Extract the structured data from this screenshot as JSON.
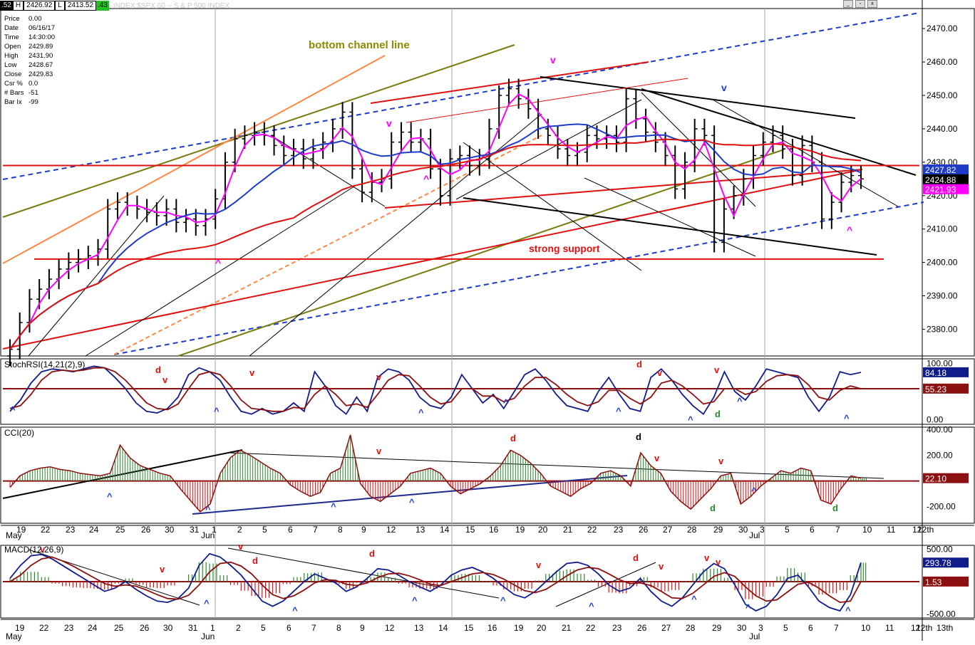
{
  "window": {
    "title": "INDEX:$SPX,60 -- S & P 500 INDEX",
    "header_prefix": ".52",
    "header_flag": "H",
    "header_val1": "2426.92",
    "header_flag2": "L",
    "header_val2": "2413.52",
    "header_change": ".43"
  },
  "info": [
    {
      "k": "Price",
      "v": "0.00"
    },
    {
      "k": "Date",
      "v": "06/16/17"
    },
    {
      "k": "Time",
      "v": "14:30:00"
    },
    {
      "k": "Open",
      "v": "2429.89"
    },
    {
      "k": "High",
      "v": "2431.90"
    },
    {
      "k": "Low",
      "v": "2428.67"
    },
    {
      "k": "Close",
      "v": "2429.83"
    },
    {
      "k": "Csr %",
      "v": "0.0"
    },
    {
      "k": "# Bars",
      "v": "-51"
    },
    {
      "k": "Bar Ix",
      "v": "-99"
    }
  ],
  "colors": {
    "price_bar": "#000000",
    "ma_short": "#ff00ff",
    "ma_mid": "#1e3cc8",
    "ma_long": "#e01010",
    "support": "#e01010",
    "blue_dash": "#1e3cc8",
    "olive": "#7a7a10",
    "orange": "#ff8844",
    "stoch": "#101c8c",
    "stoch_signal": "#8c1010",
    "pos_hist": "#2a8a2a",
    "neg_hist": "#e01010"
  },
  "chart_data": [
    {
      "type": "bar",
      "panel": "price",
      "symbol": "INDEX:$SPX,60",
      "ylim": [
        2372,
        2476
      ],
      "yticks": [
        "2470.00",
        "2460.00",
        "2450.00",
        "2440.00",
        "2430.00",
        "2420.00",
        "2410.00",
        "2400.00",
        "2390.00",
        "2380.00"
      ],
      "ytick_values": [
        2470,
        2460,
        2450,
        2440,
        2430,
        2420,
        2410,
        2400,
        2390,
        2380
      ],
      "price_badges": [
        {
          "label": "2427.82",
          "value": 2427.82,
          "color": "#1e3cc8"
        },
        {
          "label": "2424.88",
          "value": 2424.88,
          "color": "#000000"
        },
        {
          "label": "2421.93",
          "value": 2421.93,
          "color": "#ff00ff"
        }
      ],
      "annotations": [
        {
          "text": "bottom channel line",
          "color": "#8a8a00"
        },
        {
          "text": "strong support",
          "color": "#e01010"
        }
      ],
      "support_levels": [
        2401,
        2429
      ],
      "closes": [
        2374,
        2382,
        2389,
        2392,
        2395,
        2398,
        2400,
        2401,
        2402,
        2404,
        2416,
        2418,
        2417,
        2416,
        2415,
        2414,
        2416,
        2412,
        2413,
        2411,
        2413,
        2419,
        2430,
        2437,
        2438,
        2439,
        2438,
        2435,
        2432,
        2434,
        2431,
        2434,
        2436,
        2440,
        2445,
        2428,
        2421,
        2424,
        2425,
        2436,
        2439,
        2436,
        2437,
        2428,
        2420,
        2431,
        2432,
        2429,
        2431,
        2440,
        2450,
        2452,
        2449,
        2446,
        2440,
        2438,
        2434,
        2432,
        2433,
        2438,
        2437,
        2438,
        2436,
        2449,
        2443,
        2439,
        2436,
        2432,
        2422,
        2430,
        2440,
        2438,
        2406,
        2416,
        2420,
        2425,
        2432,
        2436,
        2438,
        2434,
        2426,
        2435,
        2430,
        2413,
        2418,
        2424,
        2426,
        2425
      ]
    },
    {
      "type": "line",
      "panel": "stochrsi",
      "label": "StochRSI(14,21(2),9)",
      "ylim": [
        0,
        100
      ],
      "yticks": [
        "100.00",
        "0.00"
      ],
      "ytick_values": [
        100,
        0
      ],
      "badges": [
        {
          "label": "84.18",
          "value": 84.18,
          "color": "#101c8c"
        },
        {
          "label": "55.23",
          "value": 55.23,
          "color": "#8c1010"
        }
      ],
      "k": [
        15,
        35,
        65,
        85,
        90,
        88,
        85,
        90,
        95,
        92,
        75,
        55,
        30,
        15,
        12,
        20,
        40,
        80,
        92,
        85,
        70,
        40,
        15,
        10,
        20,
        10,
        15,
        30,
        15,
        85,
        60,
        25,
        10,
        40,
        15,
        75,
        90,
        85,
        70,
        40,
        25,
        20,
        40,
        80,
        55,
        30,
        45,
        20,
        50,
        80,
        90,
        70,
        45,
        25,
        20,
        15,
        50,
        75,
        45,
        20,
        15,
        75,
        90,
        70,
        45,
        25,
        10,
        40,
        85,
        50,
        35,
        60,
        90,
        85,
        80,
        75,
        40,
        15,
        40,
        85,
        80,
        84
      ],
      "d": [
        20,
        25,
        45,
        70,
        85,
        88,
        86,
        88,
        92,
        92,
        85,
        70,
        50,
        30,
        20,
        18,
        28,
        55,
        80,
        85,
        80,
        60,
        35,
        20,
        18,
        15,
        15,
        22,
        20,
        45,
        60,
        45,
        25,
        28,
        22,
        45,
        70,
        80,
        78,
        60,
        40,
        28,
        32,
        55,
        55,
        42,
        42,
        32,
        38,
        60,
        75,
        75,
        62,
        45,
        32,
        25,
        32,
        52,
        52,
        38,
        28,
        40,
        65,
        70,
        60,
        45,
        28,
        32,
        55,
        55,
        45,
        50,
        68,
        78,
        80,
        78,
        62,
        40,
        35,
        52,
        60,
        55
      ]
    },
    {
      "type": "bar",
      "panel": "cci",
      "label": "CCI(20)",
      "ylim": [
        -330,
        420
      ],
      "yticks": [
        "400.00",
        "200.00",
        "-200.00"
      ],
      "ytick_values": [
        400,
        200,
        -200
      ],
      "badges": [
        {
          "label": "22.10",
          "value": 22.1,
          "color": "#8c1010"
        }
      ],
      "values": [
        -50,
        40,
        80,
        100,
        110,
        90,
        80,
        60,
        50,
        40,
        60,
        280,
        180,
        120,
        90,
        60,
        40,
        -60,
        -150,
        -240,
        -180,
        60,
        180,
        240,
        200,
        150,
        100,
        60,
        -30,
        -80,
        -120,
        -90,
        60,
        100,
        360,
        -20,
        -120,
        -160,
        -100,
        -40,
        60,
        80,
        100,
        60,
        -40,
        -100,
        -60,
        -20,
        40,
        120,
        240,
        200,
        140,
        60,
        -40,
        -80,
        -120,
        -60,
        -20,
        60,
        80,
        40,
        -40,
        220,
        120,
        60,
        -80,
        -160,
        -220,
        -140,
        -60,
        40,
        60,
        -180,
        -120,
        -40,
        20,
        80,
        60,
        100,
        80,
        -150,
        -180,
        -60,
        40,
        22
      ]
    },
    {
      "type": "line",
      "panel": "macd",
      "label": "MACD(12,26,9)",
      "ylim": [
        -560,
        560
      ],
      "yticks": [
        "500.00",
        "-500.00"
      ],
      "ytick_values": [
        500,
        -500
      ],
      "badges": [
        {
          "label": "293.78",
          "value": 293.78,
          "color": "#101c8c"
        },
        {
          "label": "1.53",
          "value": 1.53,
          "color": "#8c1010"
        }
      ],
      "macd": [
        50,
        250,
        400,
        420,
        350,
        250,
        150,
        50,
        -50,
        -150,
        -100,
        0,
        -120,
        -220,
        -300,
        -320,
        -260,
        -100,
        250,
        430,
        380,
        250,
        100,
        -100,
        -300,
        -380,
        -300,
        -150,
        0,
        120,
        50,
        -20,
        -150,
        -80,
        50,
        200,
        180,
        100,
        0,
        -80,
        -150,
        -50,
        100,
        180,
        220,
        150,
        50,
        -80,
        -200,
        -250,
        -150,
        0,
        150,
        280,
        300,
        250,
        120,
        -50,
        -150,
        -100,
        50,
        -150,
        -300,
        -380,
        -250,
        -50,
        150,
        280,
        200,
        -50,
        -350,
        -450,
        -380,
        -200,
        50,
        100,
        -80,
        -300,
        -400,
        -450,
        -200,
        294
      ],
      "signal": [
        0,
        100,
        250,
        350,
        380,
        320,
        240,
        150,
        60,
        -30,
        -70,
        -50,
        -70,
        -130,
        -200,
        -260,
        -270,
        -210,
        -50,
        150,
        280,
        300,
        240,
        120,
        -50,
        -200,
        -260,
        -220,
        -130,
        -20,
        30,
        20,
        -40,
        -60,
        -20,
        60,
        120,
        130,
        90,
        30,
        -40,
        -60,
        0,
        60,
        120,
        140,
        110,
        40,
        -50,
        -140,
        -170,
        -120,
        -20,
        90,
        180,
        220,
        200,
        120,
        30,
        -30,
        -20,
        -60,
        -150,
        -250,
        -260,
        -180,
        -50,
        80,
        140,
        80,
        -80,
        -220,
        -300,
        -280,
        -160,
        -40,
        -10,
        -100,
        -220,
        -320,
        -300,
        2
      ],
      "hist_scale": 0.5
    },
    {
      "type": "table",
      "panel": "x-axis",
      "date_labels": [
        {
          "label": "19",
          "month": "May"
        },
        {
          "label": "22"
        },
        {
          "label": "23"
        },
        {
          "label": "24"
        },
        {
          "label": "25"
        },
        {
          "label": "26"
        },
        {
          "label": "30"
        },
        {
          "label": "31"
        },
        {
          "label": "1",
          "month": "Jun"
        },
        {
          "label": "2"
        },
        {
          "label": "5"
        },
        {
          "label": "6"
        },
        {
          "label": "7"
        },
        {
          "label": "8"
        },
        {
          "label": "9"
        },
        {
          "label": "12"
        },
        {
          "label": "13"
        },
        {
          "label": "14"
        },
        {
          "label": "15"
        },
        {
          "label": "16"
        },
        {
          "label": "19"
        },
        {
          "label": "20"
        },
        {
          "label": "21"
        },
        {
          "label": "22"
        },
        {
          "label": "23"
        },
        {
          "label": "26"
        },
        {
          "label": "27"
        },
        {
          "label": "28"
        },
        {
          "label": "29"
        },
        {
          "label": "30"
        },
        {
          "label": "3",
          "month": "Jul"
        },
        {
          "label": "5"
        },
        {
          "label": "6"
        },
        {
          "label": "7"
        },
        {
          "label": "10"
        },
        {
          "label": "11"
        },
        {
          "label": "12"
        },
        {
          "label": "12th"
        }
      ],
      "date_labels_bottom_extra": "13th"
    }
  ],
  "markers": {
    "price": [
      {
        "t": "v",
        "c": "#ff00ff"
      },
      {
        "t": "^",
        "c": "#ff00ff"
      },
      {
        "t": "v",
        "c": "#ff00ff"
      },
      {
        "t": "^",
        "c": "#ff00ff"
      },
      {
        "t": "v",
        "c": "#1e3cc8"
      },
      {
        "t": "^",
        "c": "#ff00ff"
      }
    ],
    "stoch": [
      {
        "t": "^",
        "c": "#1e3cc8"
      },
      {
        "t": "d",
        "c": "#e01010"
      },
      {
        "t": "v",
        "c": "#e01010"
      },
      {
        "t": "^",
        "c": "#1e3cc8"
      },
      {
        "t": "v",
        "c": "#e01010"
      },
      {
        "t": "v",
        "c": "#e01010"
      },
      {
        "t": "^",
        "c": "#1e3cc8"
      },
      {
        "t": "^",
        "c": "#1e3cc8"
      },
      {
        "t": "d",
        "c": "#e01010"
      },
      {
        "t": "v",
        "c": "#e01010"
      },
      {
        "t": "^",
        "c": "#1e3cc8"
      },
      {
        "t": "v",
        "c": "#e01010"
      },
      {
        "t": "^",
        "c": "#1e3cc8"
      },
      {
        "t": "d",
        "c": "#2a8a2a"
      },
      {
        "t": "^",
        "c": "#1e3cc8"
      },
      {
        "t": "^",
        "c": "#1e3cc8"
      }
    ],
    "cci": [
      {
        "t": "^",
        "c": "#1e3cc8"
      },
      {
        "t": "^",
        "c": "#1e3cc8"
      },
      {
        "t": "v",
        "c": "#e01010"
      },
      {
        "t": "^",
        "c": "#1e3cc8"
      },
      {
        "t": "^",
        "c": "#1e3cc8"
      },
      {
        "t": "d",
        "c": "#e01010"
      },
      {
        "t": "d",
        "c": "#000000"
      },
      {
        "t": "v",
        "c": "#e01010"
      },
      {
        "t": "v",
        "c": "#e01010"
      },
      {
        "t": "d",
        "c": "#2a8a2a"
      },
      {
        "t": "^",
        "c": "#1e3cc8"
      },
      {
        "t": "d",
        "c": "#2a8a2a"
      }
    ],
    "macd": [
      {
        "t": "v",
        "c": "#e01010"
      },
      {
        "t": "v",
        "c": "#e01010"
      },
      {
        "t": "^",
        "c": "#1e3cc8"
      },
      {
        "t": "v",
        "c": "#e01010"
      },
      {
        "t": "d",
        "c": "#e01010"
      },
      {
        "t": "^",
        "c": "#1e3cc8"
      },
      {
        "t": "d",
        "c": "#e01010"
      },
      {
        "t": "^",
        "c": "#1e3cc8"
      },
      {
        "t": "^",
        "c": "#1e3cc8"
      },
      {
        "t": "v",
        "c": "#e01010"
      },
      {
        "t": "^",
        "c": "#1e3cc8"
      },
      {
        "t": "d",
        "c": "#e01010"
      },
      {
        "t": "v",
        "c": "#e01010"
      },
      {
        "t": "^",
        "c": "#1e3cc8"
      },
      {
        "t": "v",
        "c": "#e01010"
      },
      {
        "t": "v",
        "c": "#e01010"
      },
      {
        "t": "^",
        "c": "#1e3cc8"
      },
      {
        "t": "^",
        "c": "#1e3cc8"
      }
    ]
  }
}
